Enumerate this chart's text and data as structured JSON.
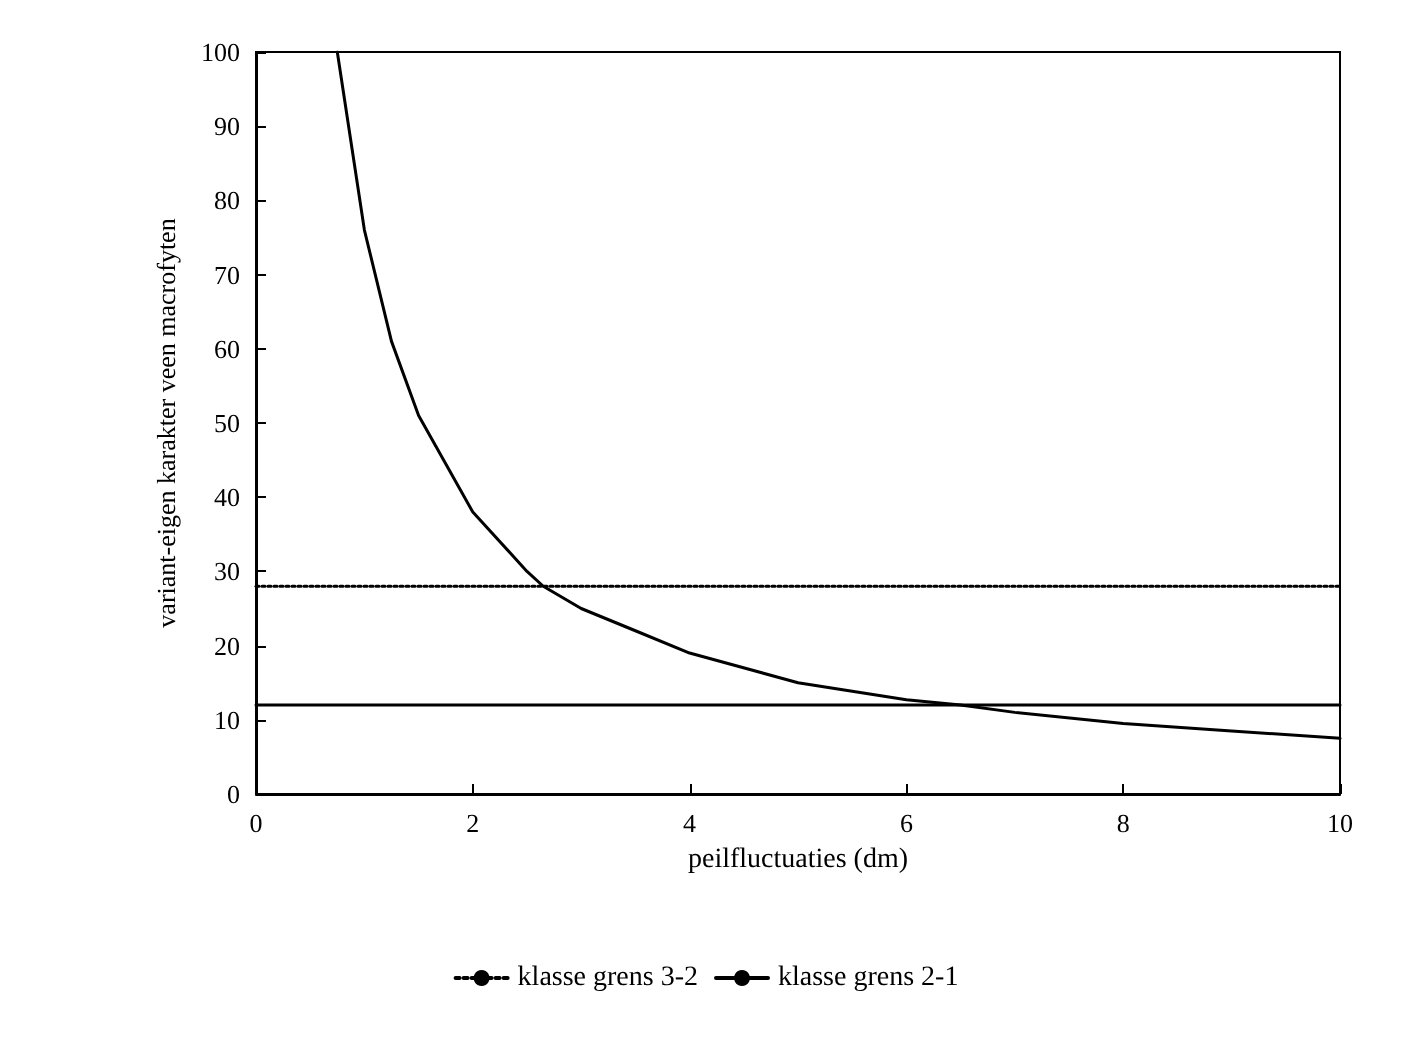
{
  "chart_data": {
    "type": "line",
    "xlabel": "peilfluctuaties (dm)",
    "ylabel": "variant-eigen karakter veen macrofyten",
    "xlim": [
      0,
      10
    ],
    "xticks": [
      0,
      2,
      4,
      6,
      8,
      10
    ],
    "ylim": [
      0,
      100
    ],
    "yticks": [
      0,
      10,
      20,
      30,
      40,
      50,
      60,
      70,
      80,
      90,
      100
    ],
    "grid": false,
    "legend": "bottom",
    "marker": "none",
    "series": [
      {
        "color": "#000000",
        "line_style": "solid",
        "x": [
          0.75,
          1,
          1.25,
          1.5,
          2,
          2.5,
          2.65,
          3,
          3.5,
          4,
          5,
          6,
          6.5,
          7,
          8,
          9,
          10
        ],
        "values": [
          100,
          76,
          61,
          51,
          38,
          30,
          28,
          25,
          22,
          19,
          15,
          12.7,
          12,
          11,
          9.5,
          8.5,
          7.5
        ]
      },
      {
        "name": "klasse grens 3-2",
        "color": "#000000",
        "line_style": "dotted",
        "x": [
          0,
          10
        ],
        "values": [
          28,
          28
        ]
      },
      {
        "name": "klasse grens 2-1",
        "color": "#000000",
        "line_style": "solid",
        "x": [
          0,
          10
        ],
        "values": [
          12,
          12
        ]
      }
    ]
  }
}
